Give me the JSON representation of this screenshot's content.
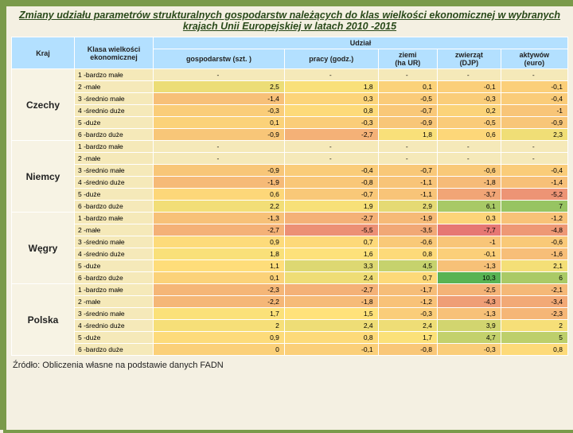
{
  "title": "Zmiany udziału parametrów strukturalnych gospodarstw należących do klas wielkości ekonomicznej w wybranych krajach Unii Europejskiej w latach 2010 -2015",
  "source": "Źródło: Obliczenia własne na podstawie danych FADN",
  "header": {
    "kraj": "Kraj",
    "klasa": "Klasa wielkości ekonomicznej",
    "udzial": "Udział",
    "cols": [
      "gospodarstw (szt. )",
      "pracy (godz.)",
      "ziemi\n(ha UR)",
      "zwierząt\n(DJP)",
      "aktywów\n(euro)"
    ]
  },
  "blocks": [
    {
      "country": "Czechy",
      "rows": [
        {
          "klasa": "1 -bardzo małe",
          "v": [
            "-",
            "-",
            "-",
            "-",
            "-"
          ]
        },
        {
          "klasa": "2 -małe",
          "v": [
            "2,5",
            "1,8",
            "0,1",
            "-0,1",
            "-0,1"
          ]
        },
        {
          "klasa": "3 -średnio małe",
          "v": [
            "-1,4",
            "0,3",
            "-0,5",
            "-0,3",
            "-0,4"
          ]
        },
        {
          "klasa": "4 -średnio duże",
          "v": [
            "-0,3",
            "0,8",
            "-0,7",
            "0,2",
            "-1"
          ]
        },
        {
          "klasa": "5 -duże",
          "v": [
            "0,1",
            "-0,3",
            "-0,9",
            "-0,5",
            "-0,9"
          ]
        },
        {
          "klasa": "6 -bardzo duże",
          "v": [
            "-0,9",
            "-2,7",
            "1,8",
            "0,6",
            "2,3"
          ]
        }
      ]
    },
    {
      "country": "Niemcy",
      "rows": [
        {
          "klasa": "1 -bardzo małe",
          "v": [
            "-",
            "-",
            "-",
            "-",
            "-"
          ]
        },
        {
          "klasa": "2 -małe",
          "v": [
            "-",
            "-",
            "-",
            "-",
            "-"
          ]
        },
        {
          "klasa": "3 -średnio małe",
          "v": [
            "-0,9",
            "-0,4",
            "-0,7",
            "-0,6",
            "-0,4"
          ]
        },
        {
          "klasa": "4 -średnio duże",
          "v": [
            "-1,9",
            "-0,8",
            "-1,1",
            "-1,8",
            "-1,4"
          ]
        },
        {
          "klasa": "5 -duże",
          "v": [
            "0,6",
            "-0,7",
            "-1,1",
            "-3,7",
            "-5,2"
          ]
        },
        {
          "klasa": "6 -bardzo duże",
          "v": [
            "2,2",
            "1,9",
            "2,9",
            "6,1",
            "7"
          ]
        }
      ]
    },
    {
      "country": "Węgry",
      "rows": [
        {
          "klasa": "1 -bardzo małe",
          "v": [
            "-1,3",
            "-2,7",
            "-1,9",
            "0,3",
            "-1,2"
          ]
        },
        {
          "klasa": "2 -małe",
          "v": [
            "-2,7",
            "-5,5",
            "-3,5",
            "-7,7",
            "-4,8"
          ]
        },
        {
          "klasa": "3 -średnio małe",
          "v": [
            "0,9",
            "0,7",
            "-0,6",
            "-1",
            "-0,6"
          ]
        },
        {
          "klasa": "4 -średnio duże",
          "v": [
            "1,8",
            "1,6",
            "0,8",
            "-0,1",
            "-1,6"
          ]
        },
        {
          "klasa": "5 -duże",
          "v": [
            "1,1",
            "3,3",
            "4,5",
            "-1,3",
            "2,1"
          ]
        },
        {
          "klasa": "6 -bardzo duże",
          "v": [
            "0,1",
            "2,4",
            "0,7",
            "10,3",
            "6"
          ]
        }
      ]
    },
    {
      "country": "Polska",
      "rows": [
        {
          "klasa": "1 -bardzo małe",
          "v": [
            "-2,3",
            "-2,7",
            "-1,7",
            "-2,5",
            "-2,1"
          ]
        },
        {
          "klasa": "2 -małe",
          "v": [
            "-2,2",
            "-1,8",
            "-1,2",
            "-4,3",
            "-3,4"
          ]
        },
        {
          "klasa": "3 -średnio małe",
          "v": [
            "1,7",
            "1,5",
            "-0,3",
            "-1,3",
            "-2,3"
          ]
        },
        {
          "klasa": "4 -średnio duże",
          "v": [
            "2",
            "2,4",
            "2,4",
            "3,9",
            "2"
          ]
        },
        {
          "klasa": "5 -duże",
          "v": [
            "0,9",
            "0,8",
            "1,7",
            "4,7",
            "5"
          ]
        },
        {
          "klasa": "6 -bardzo duże",
          "v": [
            "0",
            "-0,1",
            "-0,8",
            "-0,3",
            "0,8"
          ]
        }
      ]
    }
  ],
  "colors": {
    "header_bg": "#b3e0ff",
    "klasa_bg": "#f5e9b9",
    "kraj_bg": "#f7f3e4"
  },
  "value_color_scale": {
    "comment": "cells colored on a red-yellow-green scale by magnitude; thresholds approximate",
    "min_color": "#e57373",
    "mid_color": "#ffe27a",
    "max_color": "#4caf50",
    "range": [
      -8,
      11
    ]
  }
}
